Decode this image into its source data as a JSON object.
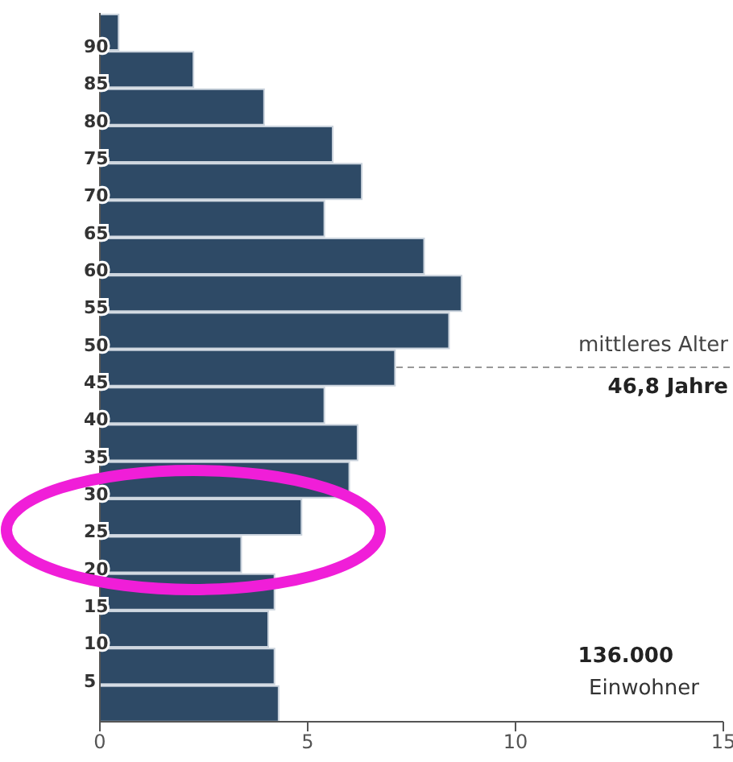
{
  "chart_data": {
    "type": "bar",
    "orientation": "horizontal",
    "categories": [
      "90",
      "85",
      "80",
      "75",
      "70",
      "65",
      "60",
      "55",
      "50",
      "45",
      "40",
      "35",
      "30",
      "25",
      "20",
      "15",
      "10",
      "5",
      null
    ],
    "values": [
      0.45,
      2.25,
      3.95,
      5.6,
      6.3,
      5.4,
      7.8,
      8.7,
      8.4,
      7.1,
      5.4,
      6.2,
      6.0,
      4.85,
      3.4,
      4.2,
      4.05,
      4.2,
      4.3
    ],
    "color": "#2e4a66",
    "xlim": [
      0,
      15
    ],
    "xticks": [
      0,
      5,
      10,
      15
    ],
    "annotations": [
      "mittleres Alter",
      "46,8 Jahre",
      "136.000",
      "Einwohner"
    ]
  }
}
